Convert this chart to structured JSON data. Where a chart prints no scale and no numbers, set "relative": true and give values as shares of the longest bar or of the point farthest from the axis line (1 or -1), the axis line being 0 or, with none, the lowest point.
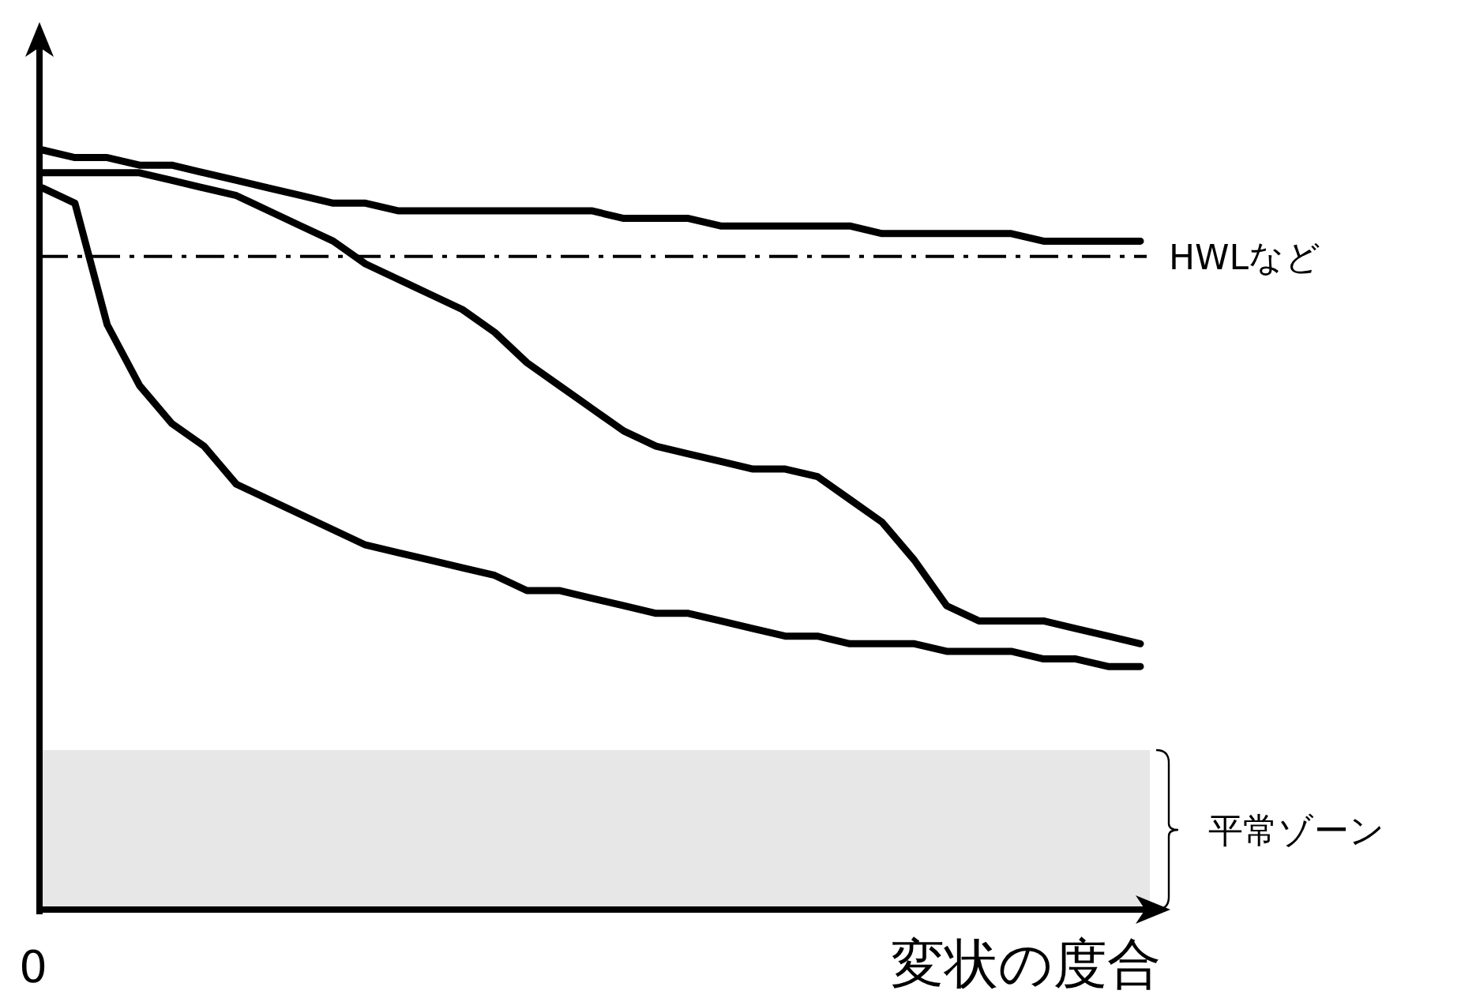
{
  "chart_data": {
    "type": "line",
    "xlabel": "変状の度合",
    "relative": true,
    "categories": [
      null,
      null,
      null,
      null,
      null,
      null,
      null,
      null,
      null,
      null,
      null,
      null,
      null,
      null,
      null,
      null,
      null,
      null,
      null,
      null,
      null,
      null,
      null,
      null,
      null,
      null,
      null,
      null,
      null,
      null,
      null,
      null,
      null,
      null,
      null
    ],
    "series": [
      {
        "color": "#000000",
        "values": [
          1.0,
          0.99,
          0.99,
          0.98,
          0.98,
          0.97,
          0.96,
          0.95,
          0.94,
          0.93,
          0.93,
          0.92,
          0.92,
          0.92,
          0.92,
          0.92,
          0.92,
          0.92,
          0.91,
          0.91,
          0.91,
          0.9,
          0.9,
          0.9,
          0.9,
          0.9,
          0.89,
          0.89,
          0.89,
          0.89,
          0.89,
          0.88,
          0.88,
          0.88,
          0.88
        ]
      },
      {
        "color": "#000000",
        "values": [
          0.97,
          0.97,
          0.97,
          0.97,
          0.96,
          0.95,
          0.94,
          0.92,
          0.9,
          0.88,
          0.85,
          0.83,
          0.81,
          0.79,
          0.76,
          0.72,
          0.69,
          0.66,
          0.63,
          0.61,
          0.6,
          0.59,
          0.58,
          0.58,
          0.57,
          0.54,
          0.51,
          0.46,
          0.4,
          0.38,
          0.38,
          0.38,
          0.37,
          0.36,
          0.35
        ]
      },
      {
        "color": "#000000",
        "values": [
          0.95,
          0.93,
          0.77,
          0.69,
          0.64,
          0.61,
          0.56,
          0.54,
          0.52,
          0.5,
          0.48,
          0.47,
          0.46,
          0.45,
          0.44,
          0.42,
          0.42,
          0.41,
          0.4,
          0.39,
          0.39,
          0.38,
          0.37,
          0.36,
          0.36,
          0.35,
          0.35,
          0.35,
          0.34,
          0.34,
          0.34,
          0.33,
          0.33,
          0.32,
          0.32
        ]
      }
    ],
    "ref_lines": [
      {
        "axis": "y",
        "value": 0.86,
        "label": "HWLなど",
        "color": "#000000",
        "line_style": "dashdot"
      }
    ],
    "bands": [
      {
        "axis": "y",
        "from": 0,
        "to": 0.21,
        "label": "平常ゾーン",
        "color": "#e6e7e6"
      }
    ],
    "annotations": [
      "0"
    ]
  }
}
